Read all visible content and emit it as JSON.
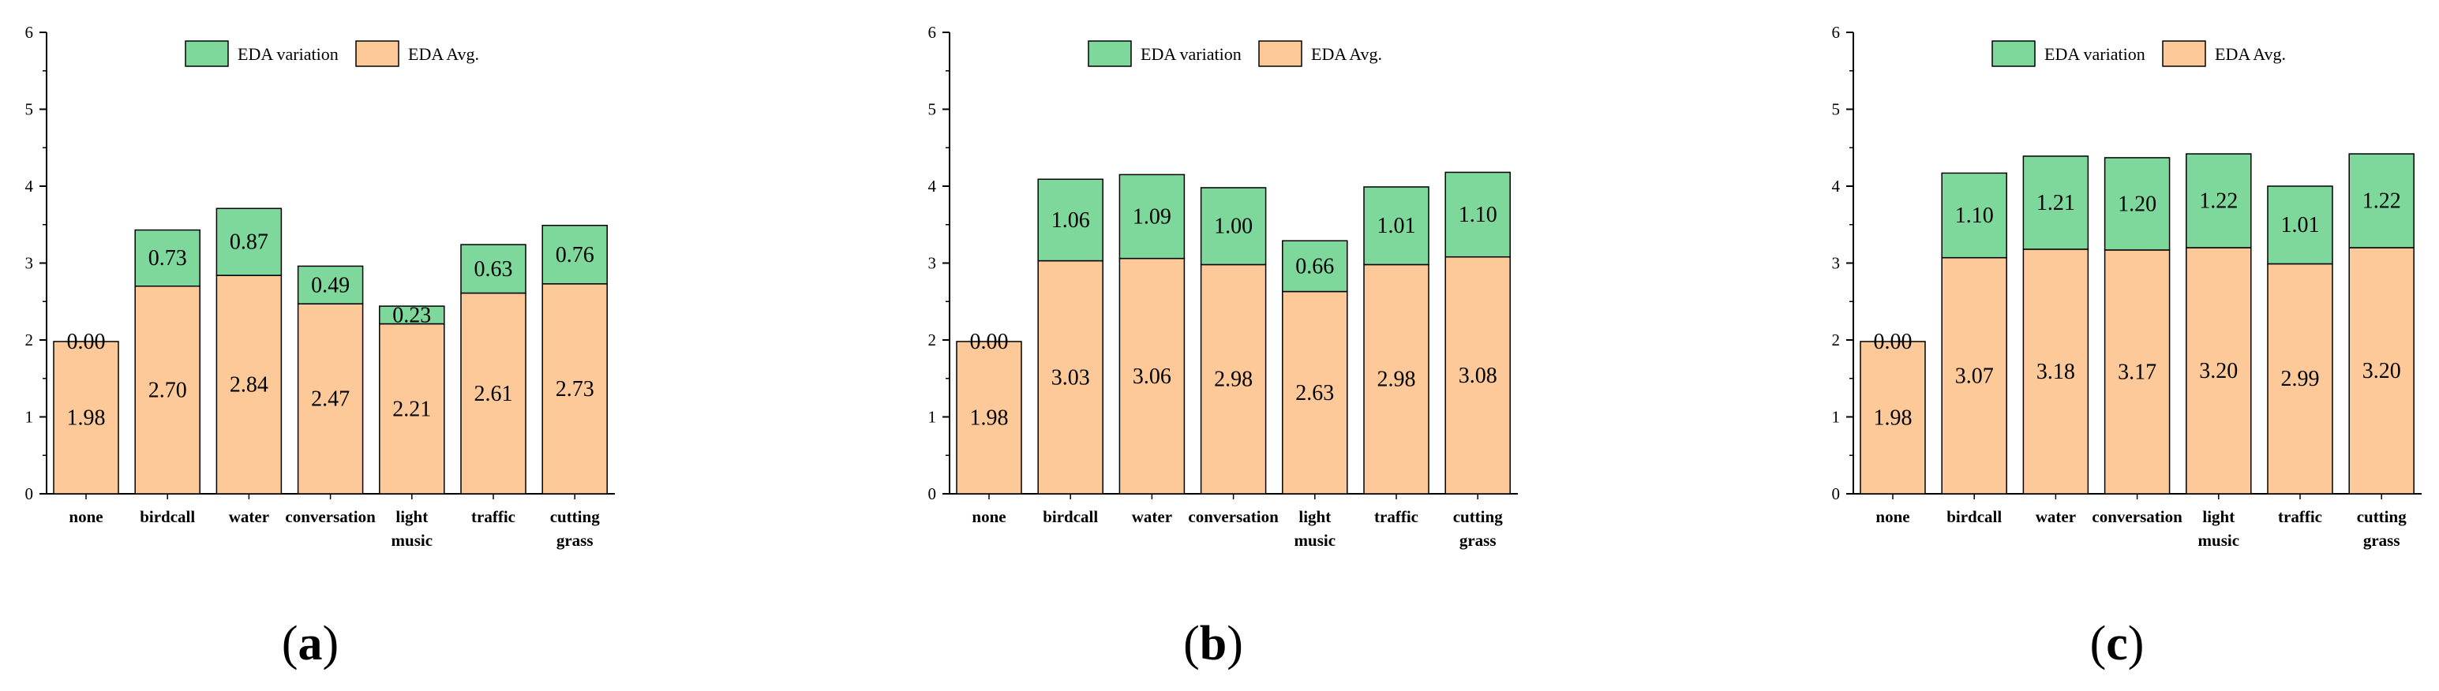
{
  "colors": {
    "avg": "#fdc998",
    "variation": "#7ed89b",
    "stroke": "#000000"
  },
  "chart_data": [
    {
      "type": "bar",
      "stacked": true,
      "panel_label": "(a)",
      "categories": [
        "none",
        "birdcall",
        "water",
        "conversation",
        "light music",
        "traffic",
        "cutting grass"
      ],
      "category_lines": [
        [
          "none"
        ],
        [
          "birdcall"
        ],
        [
          "water"
        ],
        [
          "conversation"
        ],
        [
          "light",
          "music"
        ],
        [
          "traffic"
        ],
        [
          "cutting",
          "grass"
        ]
      ],
      "series": [
        {
          "name": "EDA Avg.",
          "values": [
            1.98,
            2.7,
            2.84,
            2.47,
            2.21,
            2.61,
            2.73
          ]
        },
        {
          "name": "EDA variation",
          "values": [
            0.0,
            0.73,
            0.87,
            0.49,
            0.23,
            0.63,
            0.76
          ]
        }
      ],
      "ylim": [
        0,
        6
      ],
      "yticks": [
        0,
        1,
        2,
        3,
        4,
        5,
        6
      ],
      "legend": "top-center",
      "grid": false,
      "xlabel": "",
      "ylabel": "",
      "title": ""
    },
    {
      "type": "bar",
      "stacked": true,
      "panel_label": "(b)",
      "categories": [
        "none",
        "birdcall",
        "water",
        "conversation",
        "light music",
        "traffic",
        "cutting grass"
      ],
      "category_lines": [
        [
          "none"
        ],
        [
          "birdcall"
        ],
        [
          "water"
        ],
        [
          "conversation"
        ],
        [
          "light",
          "music"
        ],
        [
          "traffic"
        ],
        [
          "cutting",
          "grass"
        ]
      ],
      "series": [
        {
          "name": "EDA Avg.",
          "values": [
            1.98,
            3.03,
            3.06,
            2.98,
            2.63,
            2.98,
            3.08
          ]
        },
        {
          "name": "EDA variation",
          "values": [
            0.0,
            1.06,
            1.09,
            1.0,
            0.66,
            1.01,
            1.1
          ]
        }
      ],
      "ylim": [
        0,
        6
      ],
      "yticks": [
        0,
        1,
        2,
        3,
        4,
        5,
        6
      ],
      "legend": "top-center",
      "grid": false,
      "xlabel": "",
      "ylabel": "",
      "title": ""
    },
    {
      "type": "bar",
      "stacked": true,
      "panel_label": "(c)",
      "categories": [
        "none",
        "birdcall",
        "water",
        "conversation",
        "light music",
        "traffic",
        "cutting grass"
      ],
      "category_lines": [
        [
          "none"
        ],
        [
          "birdcall"
        ],
        [
          "water"
        ],
        [
          "conversation"
        ],
        [
          "light",
          "music"
        ],
        [
          "traffic"
        ],
        [
          "cutting",
          "grass"
        ]
      ],
      "series": [
        {
          "name": "EDA Avg.",
          "values": [
            1.98,
            3.07,
            3.18,
            3.17,
            3.2,
            2.99,
            3.2
          ]
        },
        {
          "name": "EDA variation",
          "values": [
            0.0,
            1.1,
            1.21,
            1.2,
            1.22,
            1.01,
            1.22
          ]
        }
      ],
      "ylim": [
        0,
        6
      ],
      "yticks": [
        0,
        1,
        2,
        3,
        4,
        5,
        6
      ],
      "legend": "top-center",
      "grid": false,
      "xlabel": "",
      "ylabel": "",
      "title": ""
    }
  ]
}
